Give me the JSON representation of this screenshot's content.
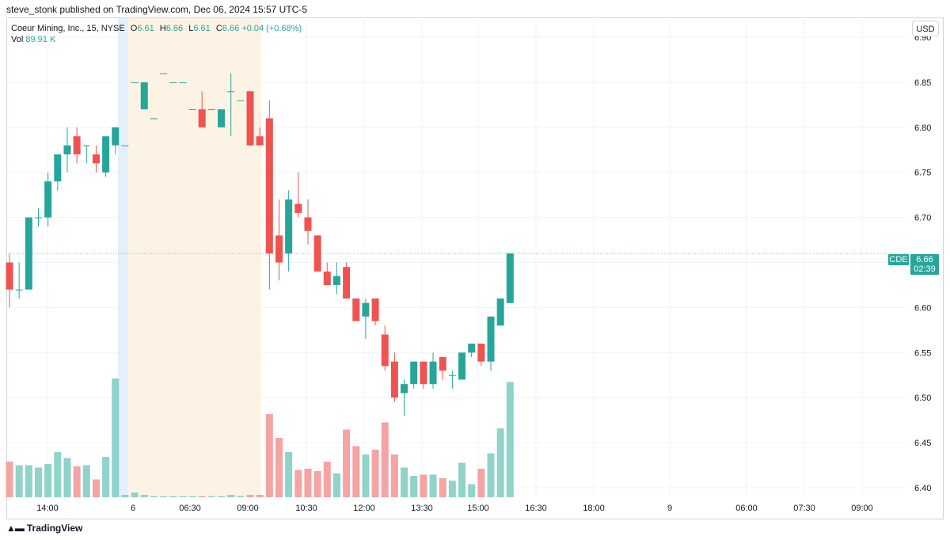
{
  "header": {
    "published": "steve_stonk published on TradingView.com, Dec 06, 2024 15:57 UTC-5"
  },
  "legend": {
    "symbol": "Coeur Mining, Inc., 15, NYSE",
    "o_label": "O",
    "o_value": "6.61",
    "h_label": "H",
    "h_value": "6.66",
    "l_label": "L",
    "l_value": "6.61",
    "c_label": "C",
    "c_value": "6.66",
    "change": "+0.04 (+0.68%)",
    "vol_label": "Vol",
    "vol_value": "89.91 K"
  },
  "currency": "USD",
  "last_price": {
    "symbol": "CDE",
    "price": "6.66",
    "countdown": "02:39"
  },
  "footer": {
    "brand": "TradingView",
    "icon": "tradingview-logo-icon"
  },
  "colors": {
    "up": "#26a69a",
    "down": "#ef5350",
    "up_vol": "#8fd3cb",
    "down_vol": "#f5a3a3",
    "premarket": "#fdf3e4",
    "afterhours": "#e3f0fb"
  },
  "chart_data": {
    "type": "candlestick",
    "ylim": [
      6.39,
      6.91
    ],
    "y_ticks": [
      "6.90",
      "6.85",
      "6.80",
      "6.75",
      "6.70",
      "6.65",
      "6.60",
      "6.55",
      "6.50",
      "6.45",
      "6.40"
    ],
    "x_ticks": [
      "14:00",
      "6",
      "06:30",
      "09:00",
      "10:30",
      "12:00",
      "13:30",
      "15:00",
      "16:30",
      "18:00",
      "9",
      "06:00",
      "07:30",
      "09:00"
    ],
    "last_value": 6.66,
    "candles": [
      {
        "o": 6.65,
        "h": 6.66,
        "l": 6.6,
        "c": 6.62
      },
      {
        "o": 6.62,
        "h": 6.65,
        "l": 6.61,
        "c": 6.62
      },
      {
        "o": 6.62,
        "h": 6.7,
        "l": 6.62,
        "c": 6.7
      },
      {
        "o": 6.7,
        "h": 6.71,
        "l": 6.69,
        "c": 6.7
      },
      {
        "o": 6.7,
        "h": 6.75,
        "l": 6.69,
        "c": 6.74
      },
      {
        "o": 6.74,
        "h": 6.77,
        "l": 6.73,
        "c": 6.77
      },
      {
        "o": 6.77,
        "h": 6.8,
        "l": 6.75,
        "c": 6.78
      },
      {
        "o": 6.79,
        "h": 6.8,
        "l": 6.76,
        "c": 6.77
      },
      {
        "o": 6.78,
        "h": 6.78,
        "l": 6.76,
        "c": 6.78
      },
      {
        "o": 6.77,
        "h": 6.78,
        "l": 6.75,
        "c": 6.76
      },
      {
        "o": 6.75,
        "h": 6.79,
        "l": 6.745,
        "c": 6.79
      },
      {
        "o": 6.78,
        "h": 6.8,
        "l": 6.77,
        "c": 6.8
      },
      {
        "o": 6.78,
        "h": 6.78,
        "l": 6.78,
        "c": 6.78
      },
      {
        "o": 6.85,
        "h": 6.85,
        "l": 6.85,
        "c": 6.85
      },
      {
        "o": 6.82,
        "h": 6.85,
        "l": 6.82,
        "c": 6.85
      },
      {
        "o": 6.81,
        "h": 6.81,
        "l": 6.81,
        "c": 6.81
      },
      {
        "o": 6.86,
        "h": 6.86,
        "l": 6.86,
        "c": 6.86
      },
      {
        "o": 6.85,
        "h": 6.85,
        "l": 6.85,
        "c": 6.85
      },
      {
        "o": 6.85,
        "h": 6.85,
        "l": 6.85,
        "c": 6.85
      },
      {
        "o": 6.82,
        "h": 6.82,
        "l": 6.82,
        "c": 6.82
      },
      {
        "o": 6.82,
        "h": 6.84,
        "l": 6.8,
        "c": 6.8
      },
      {
        "o": 6.82,
        "h": 6.82,
        "l": 6.82,
        "c": 6.82
      },
      {
        "o": 6.8,
        "h": 6.82,
        "l": 6.8,
        "c": 6.82
      },
      {
        "o": 6.84,
        "h": 6.86,
        "l": 6.79,
        "c": 6.84
      },
      {
        "o": 6.83,
        "h": 6.83,
        "l": 6.83,
        "c": 6.83
      },
      {
        "o": 6.84,
        "h": 6.84,
        "l": 6.78,
        "c": 6.78
      },
      {
        "o": 6.79,
        "h": 6.8,
        "l": 6.78,
        "c": 6.78
      },
      {
        "o": 6.81,
        "h": 6.83,
        "l": 6.62,
        "c": 6.66
      },
      {
        "o": 6.68,
        "h": 6.72,
        "l": 6.63,
        "c": 6.65
      },
      {
        "o": 6.66,
        "h": 6.73,
        "l": 6.64,
        "c": 6.72
      },
      {
        "o": 6.715,
        "h": 6.75,
        "l": 6.7,
        "c": 6.705
      },
      {
        "o": 6.7,
        "h": 6.72,
        "l": 6.67,
        "c": 6.685
      },
      {
        "o": 6.68,
        "h": 6.68,
        "l": 6.64,
        "c": 6.64
      },
      {
        "o": 6.64,
        "h": 6.65,
        "l": 6.625,
        "c": 6.625
      },
      {
        "o": 6.625,
        "h": 6.65,
        "l": 6.615,
        "c": 6.635
      },
      {
        "o": 6.645,
        "h": 6.65,
        "l": 6.61,
        "c": 6.61
      },
      {
        "o": 6.61,
        "h": 6.61,
        "l": 6.585,
        "c": 6.585
      },
      {
        "o": 6.59,
        "h": 6.61,
        "l": 6.565,
        "c": 6.605
      },
      {
        "o": 6.61,
        "h": 6.61,
        "l": 6.58,
        "c": 6.585
      },
      {
        "o": 6.57,
        "h": 6.58,
        "l": 6.53,
        "c": 6.535
      },
      {
        "o": 6.54,
        "h": 6.55,
        "l": 6.495,
        "c": 6.5
      },
      {
        "o": 6.505,
        "h": 6.52,
        "l": 6.48,
        "c": 6.515
      },
      {
        "o": 6.515,
        "h": 6.54,
        "l": 6.51,
        "c": 6.54
      },
      {
        "o": 6.54,
        "h": 6.54,
        "l": 6.51,
        "c": 6.515
      },
      {
        "o": 6.515,
        "h": 6.55,
        "l": 6.51,
        "c": 6.54
      },
      {
        "o": 6.545,
        "h": 6.545,
        "l": 6.52,
        "c": 6.53
      },
      {
        "o": 6.525,
        "h": 6.53,
        "l": 6.51,
        "c": 6.525
      },
      {
        "o": 6.52,
        "h": 6.55,
        "l": 6.52,
        "c": 6.55
      },
      {
        "o": 6.55,
        "h": 6.56,
        "l": 6.545,
        "c": 6.56
      },
      {
        "o": 6.56,
        "h": 6.56,
        "l": 6.535,
        "c": 6.54
      },
      {
        "o": 6.54,
        "h": 6.59,
        "l": 6.53,
        "c": 6.59
      },
      {
        "o": 6.58,
        "h": 6.61,
        "l": 6.58,
        "c": 6.61
      },
      {
        "o": 6.605,
        "h": 6.66,
        "l": 6.605,
        "c": 6.66
      }
    ],
    "volume_relative": [
      0.3,
      0.27,
      0.27,
      0.25,
      0.28,
      0.38,
      0.33,
      0.26,
      0.27,
      0.15,
      0.34,
      1.0,
      0.02,
      0.04,
      0.02,
      0.01,
      0.01,
      0.01,
      0.01,
      0.01,
      0.01,
      0.01,
      0.01,
      0.02,
      0.01,
      0.02,
      0.02,
      0.7,
      0.5,
      0.38,
      0.23,
      0.24,
      0.22,
      0.3,
      0.2,
      0.57,
      0.43,
      0.36,
      0.4,
      0.63,
      0.36,
      0.25,
      0.18,
      0.19,
      0.19,
      0.16,
      0.14,
      0.29,
      0.11,
      0.24,
      0.37,
      0.58,
      0.97
    ]
  }
}
